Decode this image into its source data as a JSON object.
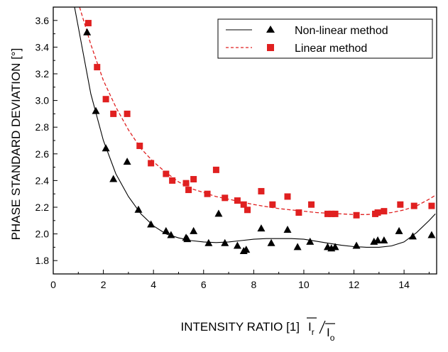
{
  "chart_data": {
    "type": "scatter",
    "xlabel": "INTENSITY RATIO [1]",
    "xlabel_formula": {
      "i_r": "I",
      "r": "r",
      "i_o": "I",
      "o": "o"
    },
    "ylabel": "PHASE STANDARD DEVIATION [°]",
    "xlim": [
      0,
      15.3
    ],
    "ylim": [
      1.7,
      3.7
    ],
    "x_ticks": [
      "0",
      "2",
      "4",
      "6",
      "8",
      "10",
      "12",
      "14"
    ],
    "y_ticks": [
      "1.8",
      "2.0",
      "2.2",
      "2.4",
      "2.6",
      "2.8",
      "3.0",
      "3.2",
      "3.4",
      "3.6"
    ],
    "x_tick_values": [
      0,
      2,
      4,
      6,
      8,
      10,
      12,
      14
    ],
    "y_tick_values": [
      1.8,
      2.0,
      2.2,
      2.4,
      2.6,
      2.8,
      3.0,
      3.2,
      3.4,
      3.6
    ],
    "legend_position": "top-right",
    "series": [
      {
        "name": "Non-linear method",
        "marker": "triangle",
        "line": "solid",
        "color": "#000000",
        "points": [
          [
            1.35,
            3.51
          ],
          [
            1.7,
            2.92
          ],
          [
            2.1,
            2.64
          ],
          [
            2.4,
            2.41
          ],
          [
            2.95,
            2.54
          ],
          [
            3.4,
            2.18
          ],
          [
            3.9,
            2.07
          ],
          [
            4.5,
            2.02
          ],
          [
            4.7,
            1.99
          ],
          [
            5.3,
            1.97
          ],
          [
            5.35,
            1.96
          ],
          [
            5.6,
            2.02
          ],
          [
            6.2,
            1.93
          ],
          [
            6.6,
            2.15
          ],
          [
            6.85,
            1.93
          ],
          [
            7.35,
            1.91
          ],
          [
            7.6,
            1.87
          ],
          [
            7.7,
            1.88
          ],
          [
            8.3,
            2.04
          ],
          [
            8.7,
            1.93
          ],
          [
            9.35,
            2.03
          ],
          [
            9.75,
            1.9
          ],
          [
            10.25,
            1.94
          ],
          [
            10.95,
            1.9
          ],
          [
            11.1,
            1.89
          ],
          [
            11.25,
            1.9
          ],
          [
            12.1,
            1.91
          ],
          [
            12.8,
            1.94
          ],
          [
            12.95,
            1.95
          ],
          [
            13.2,
            1.95
          ],
          [
            13.8,
            2.02
          ],
          [
            14.35,
            1.98
          ],
          [
            15.1,
            1.99
          ]
        ],
        "fit": [
          [
            0.85,
            3.7
          ],
          [
            1.0,
            3.55
          ],
          [
            1.5,
            3.05
          ],
          [
            2.0,
            2.7
          ],
          [
            2.5,
            2.45
          ],
          [
            3.0,
            2.28
          ],
          [
            3.5,
            2.15
          ],
          [
            4.0,
            2.06
          ],
          [
            4.5,
            2.0
          ],
          [
            5.0,
            1.97
          ],
          [
            5.5,
            1.95
          ],
          [
            6.0,
            1.94
          ],
          [
            6.5,
            1.935
          ],
          [
            7.0,
            1.94
          ],
          [
            7.5,
            1.95
          ],
          [
            8.0,
            1.96
          ],
          [
            8.5,
            1.965
          ],
          [
            9.0,
            1.965
          ],
          [
            9.5,
            1.965
          ],
          [
            10.0,
            1.96
          ],
          [
            10.5,
            1.945
          ],
          [
            11.0,
            1.93
          ],
          [
            11.5,
            1.915
          ],
          [
            12.0,
            1.905
          ],
          [
            12.5,
            1.9
          ],
          [
            13.0,
            1.9
          ],
          [
            13.5,
            1.91
          ],
          [
            14.0,
            1.94
          ],
          [
            14.5,
            2.01
          ],
          [
            15.0,
            2.1
          ],
          [
            15.25,
            2.15
          ]
        ]
      },
      {
        "name": "Linear method",
        "marker": "square",
        "line": "dashed",
        "color": "#e02020",
        "points": [
          [
            1.4,
            3.58
          ],
          [
            1.75,
            3.25
          ],
          [
            2.1,
            3.01
          ],
          [
            2.4,
            2.9
          ],
          [
            2.95,
            2.9
          ],
          [
            3.45,
            2.66
          ],
          [
            3.9,
            2.53
          ],
          [
            4.5,
            2.45
          ],
          [
            4.75,
            2.4
          ],
          [
            5.3,
            2.38
          ],
          [
            5.4,
            2.33
          ],
          [
            5.6,
            2.41
          ],
          [
            6.15,
            2.3
          ],
          [
            6.5,
            2.48
          ],
          [
            6.85,
            2.27
          ],
          [
            7.35,
            2.25
          ],
          [
            7.6,
            2.22
          ],
          [
            7.75,
            2.18
          ],
          [
            8.3,
            2.32
          ],
          [
            8.75,
            2.22
          ],
          [
            9.35,
            2.28
          ],
          [
            9.8,
            2.16
          ],
          [
            10.3,
            2.22
          ],
          [
            10.95,
            2.15
          ],
          [
            11.1,
            2.15
          ],
          [
            11.25,
            2.15
          ],
          [
            12.1,
            2.14
          ],
          [
            12.85,
            2.15
          ],
          [
            12.95,
            2.16
          ],
          [
            13.2,
            2.17
          ],
          [
            13.85,
            2.22
          ],
          [
            14.4,
            2.21
          ],
          [
            15.1,
            2.21
          ]
        ],
        "fit": [
          [
            1.05,
            3.7
          ],
          [
            1.5,
            3.42
          ],
          [
            2.0,
            3.15
          ],
          [
            2.5,
            2.95
          ],
          [
            3.0,
            2.78
          ],
          [
            3.5,
            2.64
          ],
          [
            4.0,
            2.54
          ],
          [
            4.5,
            2.46
          ],
          [
            5.0,
            2.39
          ],
          [
            5.5,
            2.34
          ],
          [
            6.0,
            2.31
          ],
          [
            6.5,
            2.28
          ],
          [
            7.0,
            2.26
          ],
          [
            7.5,
            2.24
          ],
          [
            8.0,
            2.22
          ],
          [
            8.5,
            2.205
          ],
          [
            9.0,
            2.19
          ],
          [
            9.5,
            2.18
          ],
          [
            10.0,
            2.17
          ],
          [
            10.5,
            2.16
          ],
          [
            11.0,
            2.155
          ],
          [
            11.5,
            2.15
          ],
          [
            12.0,
            2.145
          ],
          [
            12.5,
            2.145
          ],
          [
            13.0,
            2.15
          ],
          [
            13.5,
            2.16
          ],
          [
            14.0,
            2.18
          ],
          [
            14.5,
            2.21
          ],
          [
            15.0,
            2.26
          ],
          [
            15.25,
            2.29
          ]
        ]
      }
    ]
  }
}
